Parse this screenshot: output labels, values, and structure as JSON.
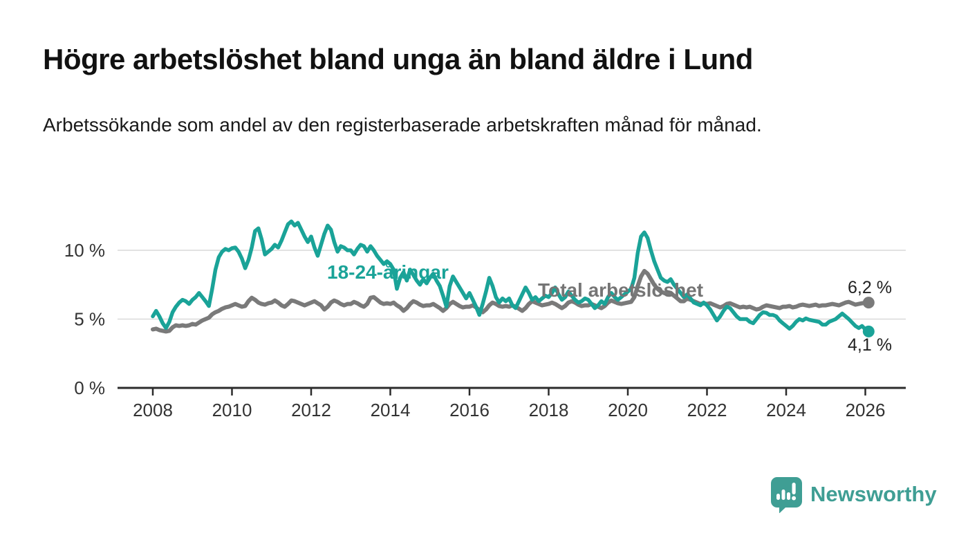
{
  "meta": {
    "title": "Högre arbetslöshet bland unga än bland äldre i Lund",
    "subtitle": "Arbetssökande som andel av den registerbaserade arbetskraften månad för månad."
  },
  "colors": {
    "young_line": "#1aa398",
    "total_line": "#7a7a7a",
    "total_label": "#757575",
    "grid": "#d9d9d9",
    "axis": "#2b2b2b",
    "tick_text": "#333333",
    "end_label_text": "#222222",
    "brand": "#3f9e94"
  },
  "brand": {
    "name": "Newsworthy"
  },
  "chart_data": {
    "type": "line",
    "title": "Högre arbetslöshet bland unga än bland äldre i Lund",
    "subtitle": "Arbetssökande som andel av den registerbaserade arbetskraften månad för månad.",
    "unit": "%",
    "x_start": {
      "year": 2008,
      "month": 1
    },
    "x_end": {
      "year": 2026,
      "month": 2
    },
    "frequency": "monthly",
    "ylim": [
      0,
      12.6
    ],
    "grid": true,
    "legend_position": "inline-annotations",
    "y_ticks": [
      {
        "value": 0,
        "label": "0 %"
      },
      {
        "value": 5,
        "label": "5 %"
      },
      {
        "value": 10,
        "label": "10 %"
      }
    ],
    "x_ticks": [
      {
        "value": 2008,
        "label": "2008"
      },
      {
        "value": 2010,
        "label": "2010"
      },
      {
        "value": 2012,
        "label": "2012"
      },
      {
        "value": 2014,
        "label": "2014"
      },
      {
        "value": 2016,
        "label": "2016"
      },
      {
        "value": 2018,
        "label": "2018"
      },
      {
        "value": 2020,
        "label": "2020"
      },
      {
        "value": 2022,
        "label": "2022"
      },
      {
        "value": 2024,
        "label": "2024"
      },
      {
        "value": 2026,
        "label": "2026"
      }
    ],
    "series": [
      {
        "name": "Total arbetslöshet",
        "color": "#7a7a7a",
        "end_label": "6,2 %",
        "end_value": 6.2,
        "values": [
          4.25,
          4.3,
          4.2,
          4.15,
          4.1,
          4.15,
          4.4,
          4.55,
          4.5,
          4.55,
          4.5,
          4.55,
          4.65,
          4.6,
          4.75,
          4.9,
          5.0,
          5.1,
          5.35,
          5.5,
          5.6,
          5.75,
          5.85,
          5.9,
          6.0,
          6.1,
          6.0,
          5.9,
          5.95,
          6.3,
          6.55,
          6.4,
          6.2,
          6.1,
          6.05,
          6.15,
          6.2,
          6.35,
          6.2,
          6.0,
          5.9,
          6.1,
          6.35,
          6.3,
          6.2,
          6.1,
          6.0,
          6.1,
          6.2,
          6.3,
          6.15,
          6.0,
          5.7,
          5.9,
          6.2,
          6.35,
          6.25,
          6.1,
          6.0,
          6.1,
          6.1,
          6.25,
          6.15,
          6.0,
          5.9,
          6.1,
          6.55,
          6.6,
          6.4,
          6.2,
          6.1,
          6.15,
          6.1,
          6.2,
          6.0,
          5.85,
          5.6,
          5.8,
          6.1,
          6.3,
          6.2,
          6.05,
          5.95,
          6.0,
          6.0,
          6.1,
          5.95,
          5.8,
          5.6,
          5.8,
          6.1,
          6.25,
          6.1,
          5.95,
          5.85,
          5.9,
          5.9,
          6.0,
          5.85,
          5.65,
          5.5,
          5.7,
          6.0,
          6.2,
          6.1,
          5.95,
          5.9,
          5.95,
          5.9,
          6.0,
          5.9,
          5.75,
          5.6,
          5.8,
          6.1,
          6.3,
          6.2,
          6.1,
          6.0,
          6.05,
          6.1,
          6.2,
          6.1,
          5.95,
          5.8,
          5.95,
          6.2,
          6.3,
          6.2,
          6.05,
          5.95,
          6.0,
          6.0,
          6.1,
          6.0,
          5.9,
          5.8,
          5.95,
          6.2,
          6.35,
          6.25,
          6.15,
          6.1,
          6.15,
          6.2,
          6.25,
          6.6,
          7.4,
          8.1,
          8.5,
          8.3,
          7.9,
          7.5,
          7.2,
          7.0,
          6.9,
          6.8,
          6.9,
          6.7,
          6.5,
          6.3,
          6.3,
          6.5,
          6.4,
          6.3,
          6.2,
          6.1,
          6.15,
          6.1,
          6.15,
          6.05,
          5.95,
          5.85,
          5.95,
          6.1,
          6.15,
          6.05,
          5.95,
          5.85,
          5.9,
          5.85,
          5.9,
          5.8,
          5.7,
          5.75,
          5.9,
          6.0,
          5.95,
          5.9,
          5.85,
          5.8,
          5.9,
          5.9,
          5.95,
          5.85,
          5.9,
          6.0,
          6.05,
          6.0,
          5.95,
          6.0,
          6.05,
          5.95,
          6.0,
          6.0,
          6.05,
          6.1,
          6.05,
          6.0,
          6.1,
          6.2,
          6.25,
          6.15,
          6.05,
          6.1,
          6.15,
          6.18,
          6.2
        ]
      },
      {
        "name": "18-24-åringar",
        "color": "#1aa398",
        "end_label": "4,1 %",
        "end_value": 4.1,
        "values": [
          5.2,
          5.6,
          5.2,
          4.7,
          4.35,
          4.8,
          5.5,
          5.9,
          6.2,
          6.4,
          6.3,
          6.1,
          6.4,
          6.6,
          6.9,
          6.6,
          6.3,
          5.95,
          7.2,
          8.6,
          9.5,
          9.9,
          10.1,
          10.0,
          10.15,
          10.2,
          9.9,
          9.4,
          8.7,
          9.3,
          10.2,
          11.4,
          11.6,
          10.8,
          9.7,
          9.9,
          10.1,
          10.4,
          10.2,
          10.7,
          11.3,
          11.9,
          12.1,
          11.8,
          12.0,
          11.5,
          11.0,
          10.6,
          11.0,
          10.2,
          9.6,
          10.4,
          11.2,
          11.8,
          11.5,
          10.6,
          9.9,
          10.3,
          10.2,
          10.0,
          10.0,
          9.7,
          10.1,
          10.4,
          10.3,
          9.9,
          10.3,
          10.0,
          9.6,
          9.3,
          9.0,
          9.2,
          9.0,
          8.6,
          7.2,
          8.0,
          8.4,
          7.8,
          8.6,
          8.2,
          7.8,
          7.5,
          7.9,
          7.6,
          8.0,
          8.3,
          7.8,
          7.4,
          6.7,
          5.9,
          7.4,
          8.1,
          7.7,
          7.3,
          6.9,
          6.5,
          6.9,
          6.4,
          5.9,
          5.3,
          6.1,
          7.0,
          8.0,
          7.4,
          6.6,
          6.2,
          6.5,
          6.3,
          6.5,
          6.0,
          5.8,
          6.3,
          6.8,
          7.3,
          6.9,
          6.4,
          6.6,
          6.3,
          6.5,
          6.7,
          6.6,
          6.9,
          7.3,
          6.8,
          6.4,
          6.6,
          7.0,
          6.7,
          6.4,
          6.2,
          6.3,
          6.5,
          6.4,
          6.1,
          5.8,
          6.0,
          6.3,
          6.1,
          6.6,
          6.9,
          6.6,
          6.4,
          6.6,
          6.8,
          7.0,
          7.2,
          8.0,
          9.8,
          11.0,
          11.3,
          10.9,
          10.0,
          9.2,
          8.6,
          8.0,
          7.8,
          7.7,
          7.9,
          7.5,
          7.2,
          6.9,
          6.6,
          6.8,
          6.5,
          6.2,
          6.1,
          6.0,
          6.2,
          6.0,
          5.7,
          5.3,
          4.9,
          5.2,
          5.6,
          5.9,
          5.8,
          5.5,
          5.2,
          5.0,
          5.0,
          5.0,
          4.8,
          4.7,
          5.0,
          5.3,
          5.5,
          5.45,
          5.3,
          5.3,
          5.2,
          4.9,
          4.7,
          4.5,
          4.3,
          4.5,
          4.8,
          5.0,
          4.9,
          5.05,
          4.95,
          4.9,
          4.85,
          4.8,
          4.6,
          4.6,
          4.8,
          4.9,
          5.0,
          5.2,
          5.4,
          5.2,
          5.0,
          4.75,
          4.5,
          4.35,
          4.5,
          4.25,
          4.1
        ]
      }
    ]
  }
}
